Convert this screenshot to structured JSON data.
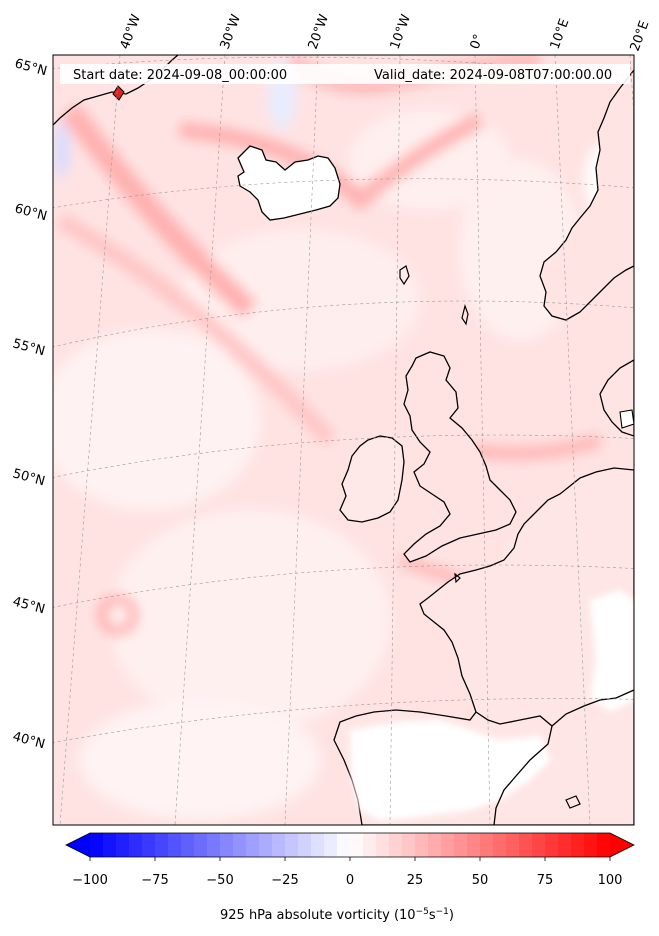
{
  "header": {
    "start_date": "Start date: 2024-09-08_00:00:00",
    "valid_date": "Valid_date: 2024-09-08T07:00:00.00"
  },
  "longitude_labels": [
    "40°W",
    "30°W",
    "20°W",
    "10°W",
    "0°",
    "10°E",
    "20°E"
  ],
  "latitude_labels": [
    "65°N",
    "60°N",
    "55°N",
    "50°N",
    "45°N",
    "40°N"
  ],
  "colorbar": {
    "ticks": [
      "−100",
      "−75",
      "−50",
      "−25",
      "0",
      "25",
      "50",
      "75",
      "100"
    ],
    "tick_values": [
      -100,
      -75,
      -50,
      -25,
      0,
      25,
      50,
      75,
      100
    ],
    "min": -100,
    "max": 100,
    "label": "925 hPa absolute vorticity (10",
    "label_exp1": "−5",
    "label_mid": "s",
    "label_exp2": "−1",
    "label_end": ")",
    "neg_color": "#0000ff",
    "zero_color": "#ffffff",
    "pos_color": "#ff0000"
  },
  "colors": {
    "background_field": "#ffe6e6",
    "coastline": "#000000",
    "gridline": "#aaaaaa"
  }
}
